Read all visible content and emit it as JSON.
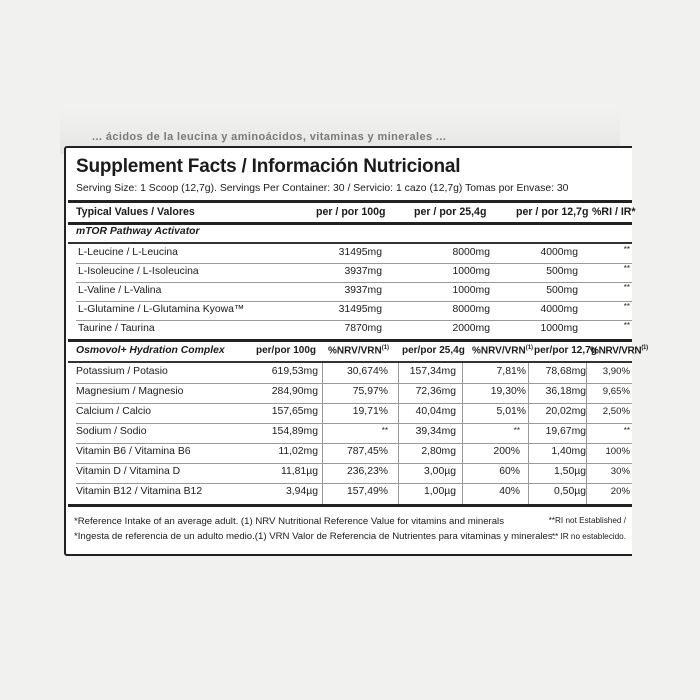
{
  "cutoff_text": "... ácidos de la leucina y aminoácidos, vitaminas y minerales ...",
  "title": "Supplement Facts / Información Nutricional",
  "serving": "Serving Size: 1 Scoop (12,7g). Servings Per Container: 30 / Servicio: 1 cazo (12,7g) Tomas por Envase: 30",
  "header": {
    "typical": "Typical Values / Valores",
    "per100": "per / por 100g",
    "per25": "per / por 25,4g",
    "per12": "per / por 12,7g",
    "ri": "%RI / IR*"
  },
  "mtor": {
    "title": "mTOR Pathway Activator",
    "rows": [
      {
        "name": "L-Leucine / L-Leucina",
        "v100": "31495mg",
        "v25": "8000mg",
        "v12": "4000mg",
        "ri": "**"
      },
      {
        "name": "L-Isoleucine / L-Isoleucina",
        "v100": "3937mg",
        "v25": "1000mg",
        "v12": "500mg",
        "ri": "**"
      },
      {
        "name": "L-Valine / L-Valina",
        "v100": "3937mg",
        "v25": "1000mg",
        "v12": "500mg",
        "ri": "**"
      },
      {
        "name": "L-Glutamine / L-Glutamina Kyowa™",
        "v100": "31495mg",
        "v25": "8000mg",
        "v12": "4000mg",
        "ri": "**"
      },
      {
        "name": "Taurine / Taurina",
        "v100": "7870mg",
        "v25": "2000mg",
        "v12": "1000mg",
        "ri": "**"
      }
    ]
  },
  "osmo": {
    "title": "Osmovol+ Hydration Complex",
    "h100": "per/por 100g",
    "hnrv1": "%NRV/VRN",
    "h25": "per/por 25,4g",
    "hnrv2": "%NRV/VRN",
    "h12": "per/por 12,7g",
    "hnrv3": "%NRV/VRN",
    "sup": "(1)",
    "rows": [
      {
        "name": "Potassium / Potasio",
        "v100": "619,53mg",
        "n1": "30,674%",
        "v25": "157,34mg",
        "n2": "7,81%",
        "v12": "78,68mg",
        "n3": "3,90%"
      },
      {
        "name": "Magnesium / Magnesio",
        "v100": "284,90mg",
        "n1": "75,97%",
        "v25": "72,36mg",
        "n2": "19,30%",
        "v12": "36,18mg",
        "n3": "9,65%"
      },
      {
        "name": "Calcium / Calcio",
        "v100": "157,65mg",
        "n1": "19,71%",
        "v25": "40,04mg",
        "n2": "5,01%",
        "v12": "20,02mg",
        "n3": "2,50%"
      },
      {
        "name": "Sodium / Sodio",
        "v100": "154,89mg",
        "n1": "**",
        "v25": "39,34mg",
        "n2": "**",
        "v12": "19,67mg",
        "n3": "**"
      },
      {
        "name": "Vitamin B6 / Vitamina B6",
        "v100": "11,02mg",
        "n1": "787,45%",
        "v25": "2,80mg",
        "n2": "200%",
        "v12": "1,40mg",
        "n3": "100%"
      },
      {
        "name": "Vitamin D / Vitamina D",
        "v100": "11,81µg",
        "n1": "236,23%",
        "v25": "3,00µg",
        "n2": "60%",
        "v12": "1,50µg",
        "n3": "30%"
      },
      {
        "name": "Vitamin B12 / Vitamina B12",
        "v100": "3,94µg",
        "n1": "157,49%",
        "v25": "1,00µg",
        "n2": "40%",
        "v12": "0,50µg",
        "n3": "20%"
      }
    ]
  },
  "footer": {
    "en": "*Reference Intake of an average adult. (1) NRV Nutritional Reference Value for vitamins and minerals",
    "es": "*Ingesta de referencia de un adulto medio.(1) VRN Valor de Referencia de Nutrientes para vitaminas y minerales.",
    "en_right": "**RI not Established /",
    "es_right": "** IR no establecido."
  }
}
